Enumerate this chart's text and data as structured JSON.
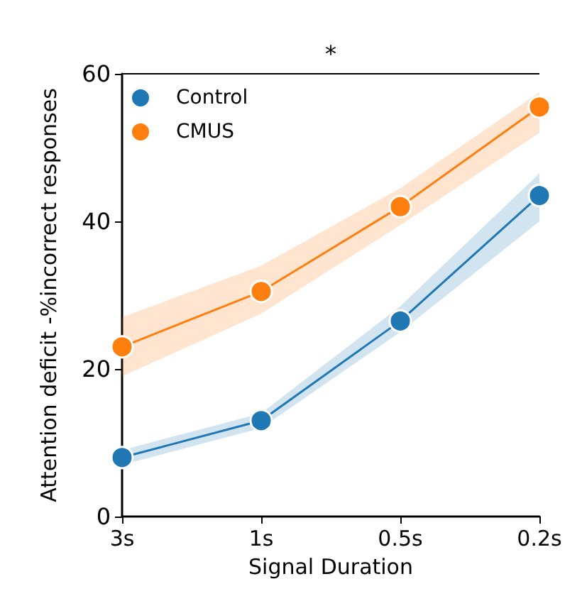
{
  "chart_data": {
    "type": "line",
    "xlabel": "Signal Duration",
    "ylabel": "Attention deficit -%incorrect responses",
    "categories": [
      "3s",
      "1s",
      "0.5s",
      "0.2s"
    ],
    "series": [
      {
        "name": "Control",
        "color": "#1f77b4",
        "values": [
          8,
          13,
          26.5,
          43.5
        ],
        "lower": [
          7,
          12,
          25,
          40
        ],
        "upper": [
          9,
          14,
          28.5,
          46.5
        ]
      },
      {
        "name": "CMUS",
        "color": "#ff7f0e",
        "values": [
          23,
          30.5,
          42,
          55.5
        ],
        "lower": [
          19,
          27.5,
          39.5,
          52
        ],
        "upper": [
          27,
          34,
          44.5,
          57.5
        ]
      }
    ],
    "ylim": [
      0,
      60
    ],
    "yticks": [
      0,
      20,
      40,
      60
    ],
    "grid": false,
    "legend": "top left",
    "marker": "circle",
    "line_style": "solid",
    "annotations": [
      "*"
    ]
  }
}
